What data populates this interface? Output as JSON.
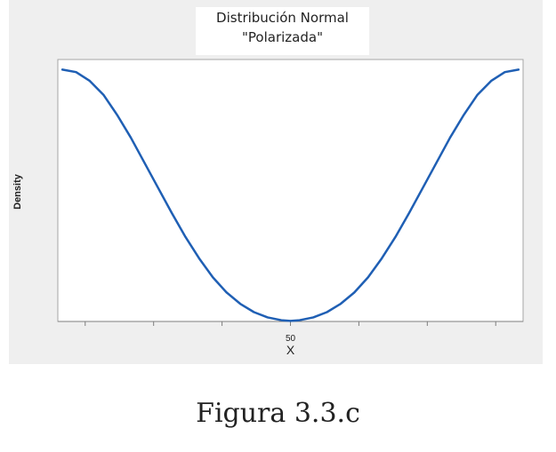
{
  "chart_data": {
    "type": "line",
    "title": [
      "Distribución Normal",
      "\"Polarizada\""
    ],
    "xlabel": "X",
    "ylabel": "Density",
    "x_tick_labels": [
      {
        "x": 50,
        "label": "50"
      }
    ],
    "x_minor_ticks": [
      5,
      20,
      35,
      65,
      80,
      95
    ],
    "xlim": [
      -1,
      101
    ],
    "ylim": [
      0,
      1.04
    ],
    "grid": false,
    "series": [
      {
        "color": "#1f5fb4",
        "x": [
          0,
          3,
          6,
          9,
          12,
          15,
          18,
          21,
          24,
          27,
          30,
          33,
          36,
          39,
          42,
          45,
          48,
          50,
          52,
          55,
          58,
          61,
          64,
          67,
          70,
          73,
          76,
          79,
          82,
          85,
          88,
          91,
          94,
          97,
          100
        ],
        "y": [
          1.0,
          0.99,
          0.955,
          0.9,
          0.82,
          0.73,
          0.63,
          0.53,
          0.43,
          0.335,
          0.25,
          0.175,
          0.115,
          0.07,
          0.037,
          0.016,
          0.005,
          0.002,
          0.005,
          0.016,
          0.037,
          0.07,
          0.115,
          0.175,
          0.25,
          0.335,
          0.43,
          0.53,
          0.63,
          0.73,
          0.82,
          0.9,
          0.955,
          0.99,
          1.0
        ]
      }
    ]
  },
  "caption": "Figura 3.3.c"
}
